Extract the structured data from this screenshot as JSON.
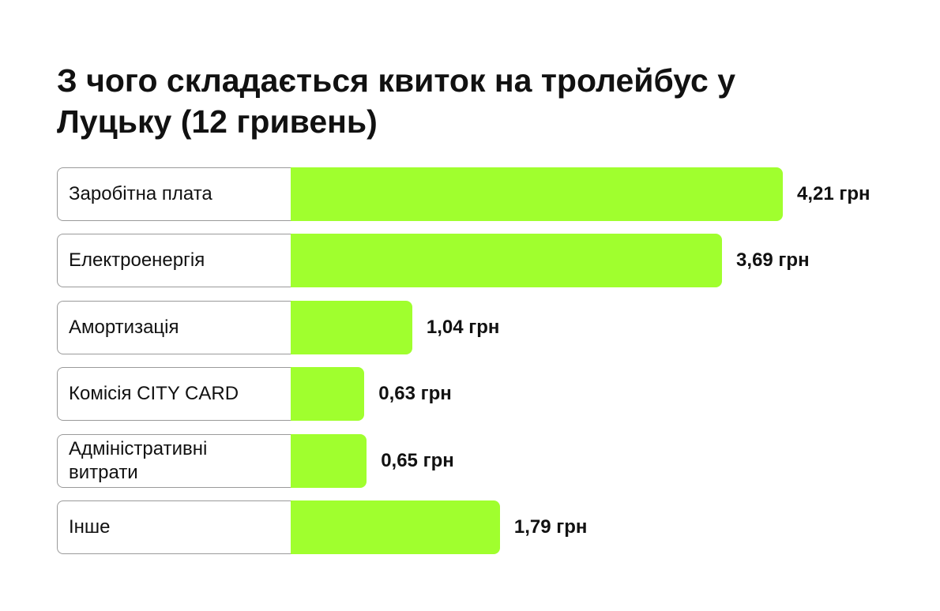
{
  "chart_data": {
    "type": "bar",
    "orientation": "horizontal",
    "title": "З чого складається квиток на тролейбус у Луцьку (12 гривень)",
    "categories": [
      "Заробітна плата",
      "Електроенергія",
      "Амортизація",
      "Комісія CITY CARD",
      "Адміністративні витрати",
      "Інше"
    ],
    "values": [
      4.21,
      3.69,
      1.04,
      0.63,
      0.65,
      1.79
    ],
    "value_labels": [
      "4,21 грн",
      "3,69 грн",
      "1,04 грн",
      "0,63 грн",
      "0,65 грн",
      "1,79 грн"
    ],
    "color": "#a0ff2e"
  }
}
